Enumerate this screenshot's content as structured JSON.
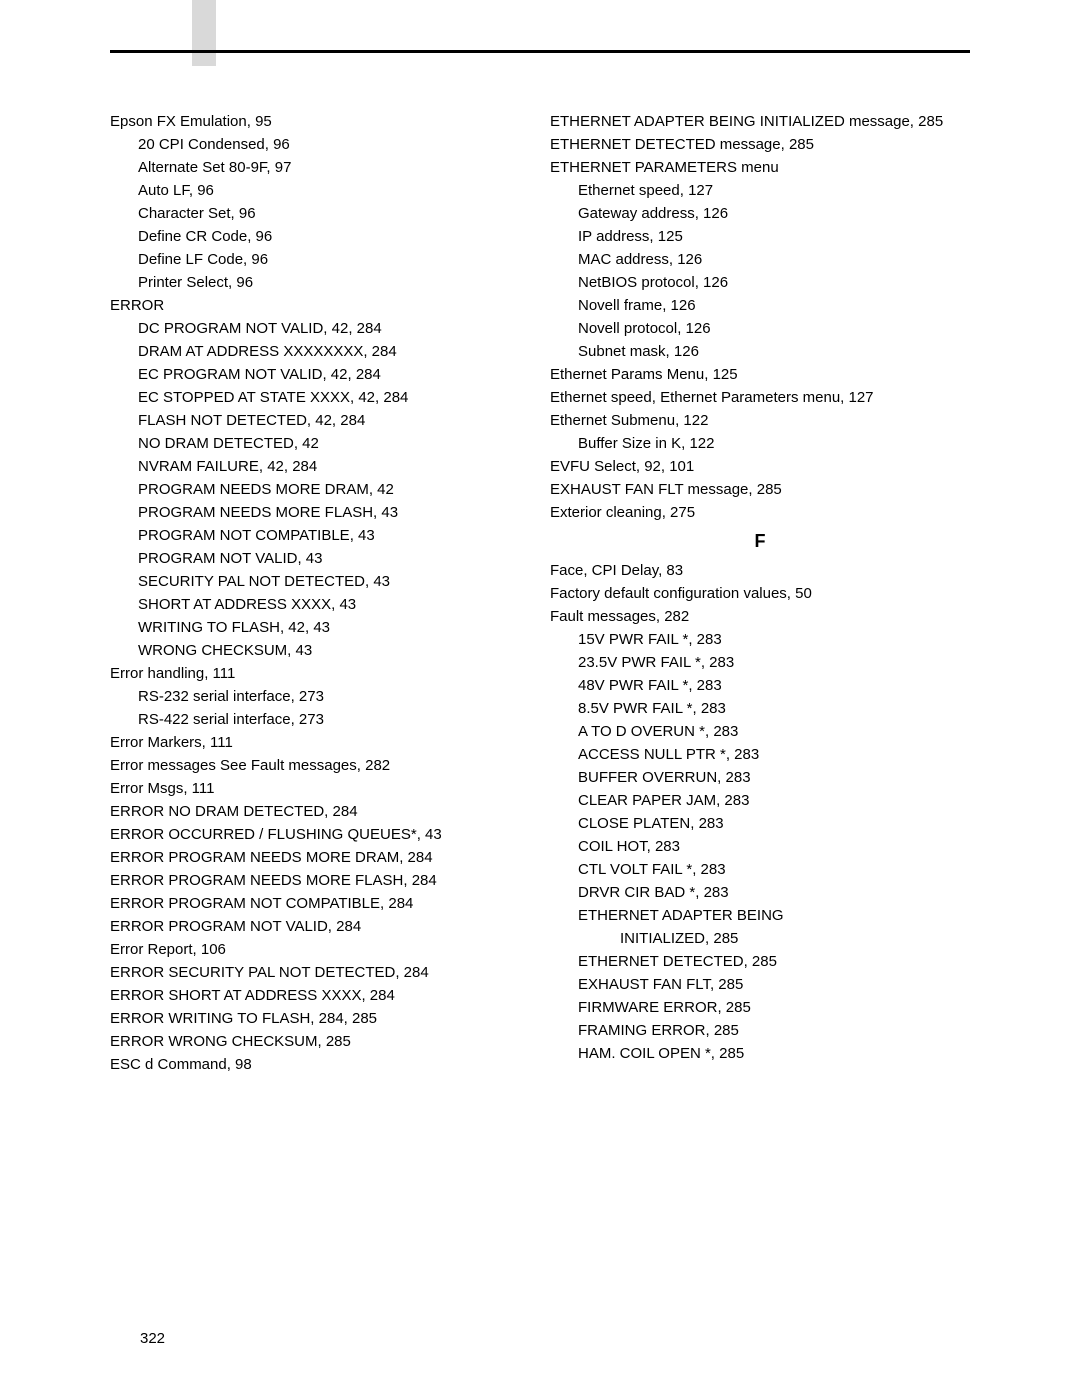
{
  "page_number": "322",
  "letter_heading": "F",
  "col1": [
    {
      "indent": 0,
      "text": "Epson FX Emulation, 95"
    },
    {
      "indent": 1,
      "text": "20 CPI Condensed, 96"
    },
    {
      "indent": 1,
      "text": "Alternate Set 80-9F, 97"
    },
    {
      "indent": 1,
      "text": "Auto LF, 96"
    },
    {
      "indent": 1,
      "text": "Character Set, 96"
    },
    {
      "indent": 1,
      "text": "Define CR Code, 96"
    },
    {
      "indent": 1,
      "text": "Define LF Code, 96"
    },
    {
      "indent": 1,
      "text": "Printer Select, 96"
    },
    {
      "indent": 0,
      "text": "ERROR"
    },
    {
      "indent": 1,
      "text": "DC PROGRAM NOT VALID, 42, 284"
    },
    {
      "indent": 1,
      "text": "DRAM AT ADDRESS XXXXXXXX, 284"
    },
    {
      "indent": 1,
      "text": "EC PROGRAM NOT VALID, 42, 284"
    },
    {
      "indent": 1,
      "text": "EC STOPPED AT STATE XXXX, 42, 284"
    },
    {
      "indent": 1,
      "text": "FLASH NOT DETECTED, 42, 284"
    },
    {
      "indent": 1,
      "text": "NO DRAM DETECTED, 42"
    },
    {
      "indent": 1,
      "text": "NVRAM FAILURE, 42, 284"
    },
    {
      "indent": 1,
      "text": "PROGRAM NEEDS MORE DRAM, 42"
    },
    {
      "indent": 1,
      "text": "PROGRAM NEEDS MORE FLASH, 43"
    },
    {
      "indent": 1,
      "text": "PROGRAM NOT COMPATIBLE, 43"
    },
    {
      "indent": 1,
      "text": "PROGRAM NOT VALID, 43"
    },
    {
      "indent": 1,
      "text": "SECURITY PAL NOT DETECTED, 43"
    },
    {
      "indent": 1,
      "text": "SHORT AT ADDRESS XXXX, 43"
    },
    {
      "indent": 1,
      "text": "WRITING TO FLASH, 42, 43"
    },
    {
      "indent": 1,
      "text": "WRONG CHECKSUM, 43"
    },
    {
      "indent": 0,
      "text": "Error handling, 111"
    },
    {
      "indent": 1,
      "text": "RS-232 serial interface, 273"
    },
    {
      "indent": 1,
      "text": "RS-422 serial interface, 273"
    },
    {
      "indent": 0,
      "text": "Error Markers, 111"
    },
    {
      "indent": 0,
      "text": "Error messages See Fault messages, 282"
    },
    {
      "indent": 0,
      "text": "Error Msgs, 111"
    },
    {
      "indent": 0,
      "text": "ERROR NO DRAM DETECTED, 284"
    },
    {
      "indent": 0,
      "text": "ERROR OCCURRED / FLUSHING QUEUES*, 43"
    },
    {
      "indent": 0,
      "text": "ERROR PROGRAM NEEDS MORE DRAM, 284"
    },
    {
      "indent": 0,
      "text": "ERROR PROGRAM NEEDS MORE FLASH, 284"
    },
    {
      "indent": 0,
      "text": "ERROR PROGRAM NOT COMPATIBLE, 284"
    },
    {
      "indent": 0,
      "text": "ERROR PROGRAM NOT VALID, 284"
    },
    {
      "indent": 0,
      "text": "Error Report, 106"
    },
    {
      "indent": 0,
      "text": "ERROR SECURITY PAL NOT DETECTED, 284"
    },
    {
      "indent": 0,
      "text": "ERROR SHORT AT ADDRESS XXXX, 284"
    },
    {
      "indent": 0,
      "text": "ERROR WRITING TO FLASH, 284, 285"
    },
    {
      "indent": 0,
      "text": "ERROR WRONG CHECKSUM, 285"
    },
    {
      "indent": 0,
      "text": "ESC d Command, 98"
    }
  ],
  "col2_before": [
    {
      "indent": 0,
      "text": "ETHERNET ADAPTER BEING INITIALIZED message, 285"
    },
    {
      "indent": 0,
      "text": "ETHERNET DETECTED message, 285"
    },
    {
      "indent": 0,
      "text": "ETHERNET PARAMETERS menu"
    },
    {
      "indent": 1,
      "text": "Ethernet speed, 127"
    },
    {
      "indent": 1,
      "text": "Gateway address, 126"
    },
    {
      "indent": 1,
      "text": "IP address, 125"
    },
    {
      "indent": 1,
      "text": "MAC address, 126"
    },
    {
      "indent": 1,
      "text": "NetBIOS protocol, 126"
    },
    {
      "indent": 1,
      "text": "Novell frame, 126"
    },
    {
      "indent": 1,
      "text": "Novell protocol, 126"
    },
    {
      "indent": 1,
      "text": "Subnet mask, 126"
    },
    {
      "indent": 0,
      "text": "Ethernet Params Menu, 125"
    },
    {
      "indent": 0,
      "text": "Ethernet speed, Ethernet Parameters menu, 127"
    },
    {
      "indent": 0,
      "text": "Ethernet Submenu, 122"
    },
    {
      "indent": 1,
      "text": "Buffer Size in K, 122"
    },
    {
      "indent": 0,
      "text": "EVFU Select, 92, 101"
    },
    {
      "indent": 0,
      "text": "EXHAUST FAN FLT message, 285"
    },
    {
      "indent": 0,
      "text": "Exterior cleaning, 275"
    }
  ],
  "col2_after": [
    {
      "indent": 0,
      "text": "Face, CPI Delay, 83"
    },
    {
      "indent": 0,
      "text": "Factory default configuration values, 50"
    },
    {
      "indent": 0,
      "text": "Fault messages, 282"
    },
    {
      "indent": 1,
      "text": "15V PWR FAIL *, 283"
    },
    {
      "indent": 1,
      "text": "23.5V PWR FAIL *, 283"
    },
    {
      "indent": 1,
      "text": "48V PWR FAIL *, 283"
    },
    {
      "indent": 1,
      "text": "8.5V PWR FAIL *, 283"
    },
    {
      "indent": 1,
      "text": "A TO D OVERUN *, 283"
    },
    {
      "indent": 1,
      "text": "ACCESS NULL PTR *, 283"
    },
    {
      "indent": 1,
      "text": "BUFFER OVERRUN, 283"
    },
    {
      "indent": 1,
      "text": "CLEAR PAPER JAM, 283"
    },
    {
      "indent": 1,
      "text": "CLOSE PLATEN, 283"
    },
    {
      "indent": 1,
      "text": "COIL HOT, 283"
    },
    {
      "indent": 1,
      "text": "CTL VOLT FAIL *, 283"
    },
    {
      "indent": 1,
      "text": "DRVR CIR BAD *, 283"
    },
    {
      "indent": 1,
      "text": "ETHERNET ADAPTER BEING"
    },
    {
      "indent": 2,
      "text": "INITIALIZED, 285"
    },
    {
      "indent": 1,
      "text": "ETHERNET DETECTED, 285"
    },
    {
      "indent": 1,
      "text": "EXHAUST FAN FLT, 285"
    },
    {
      "indent": 1,
      "text": "FIRMWARE ERROR, 285"
    },
    {
      "indent": 1,
      "text": "FRAMING ERROR, 285"
    },
    {
      "indent": 1,
      "text": "HAM. COIL OPEN *, 285"
    }
  ]
}
